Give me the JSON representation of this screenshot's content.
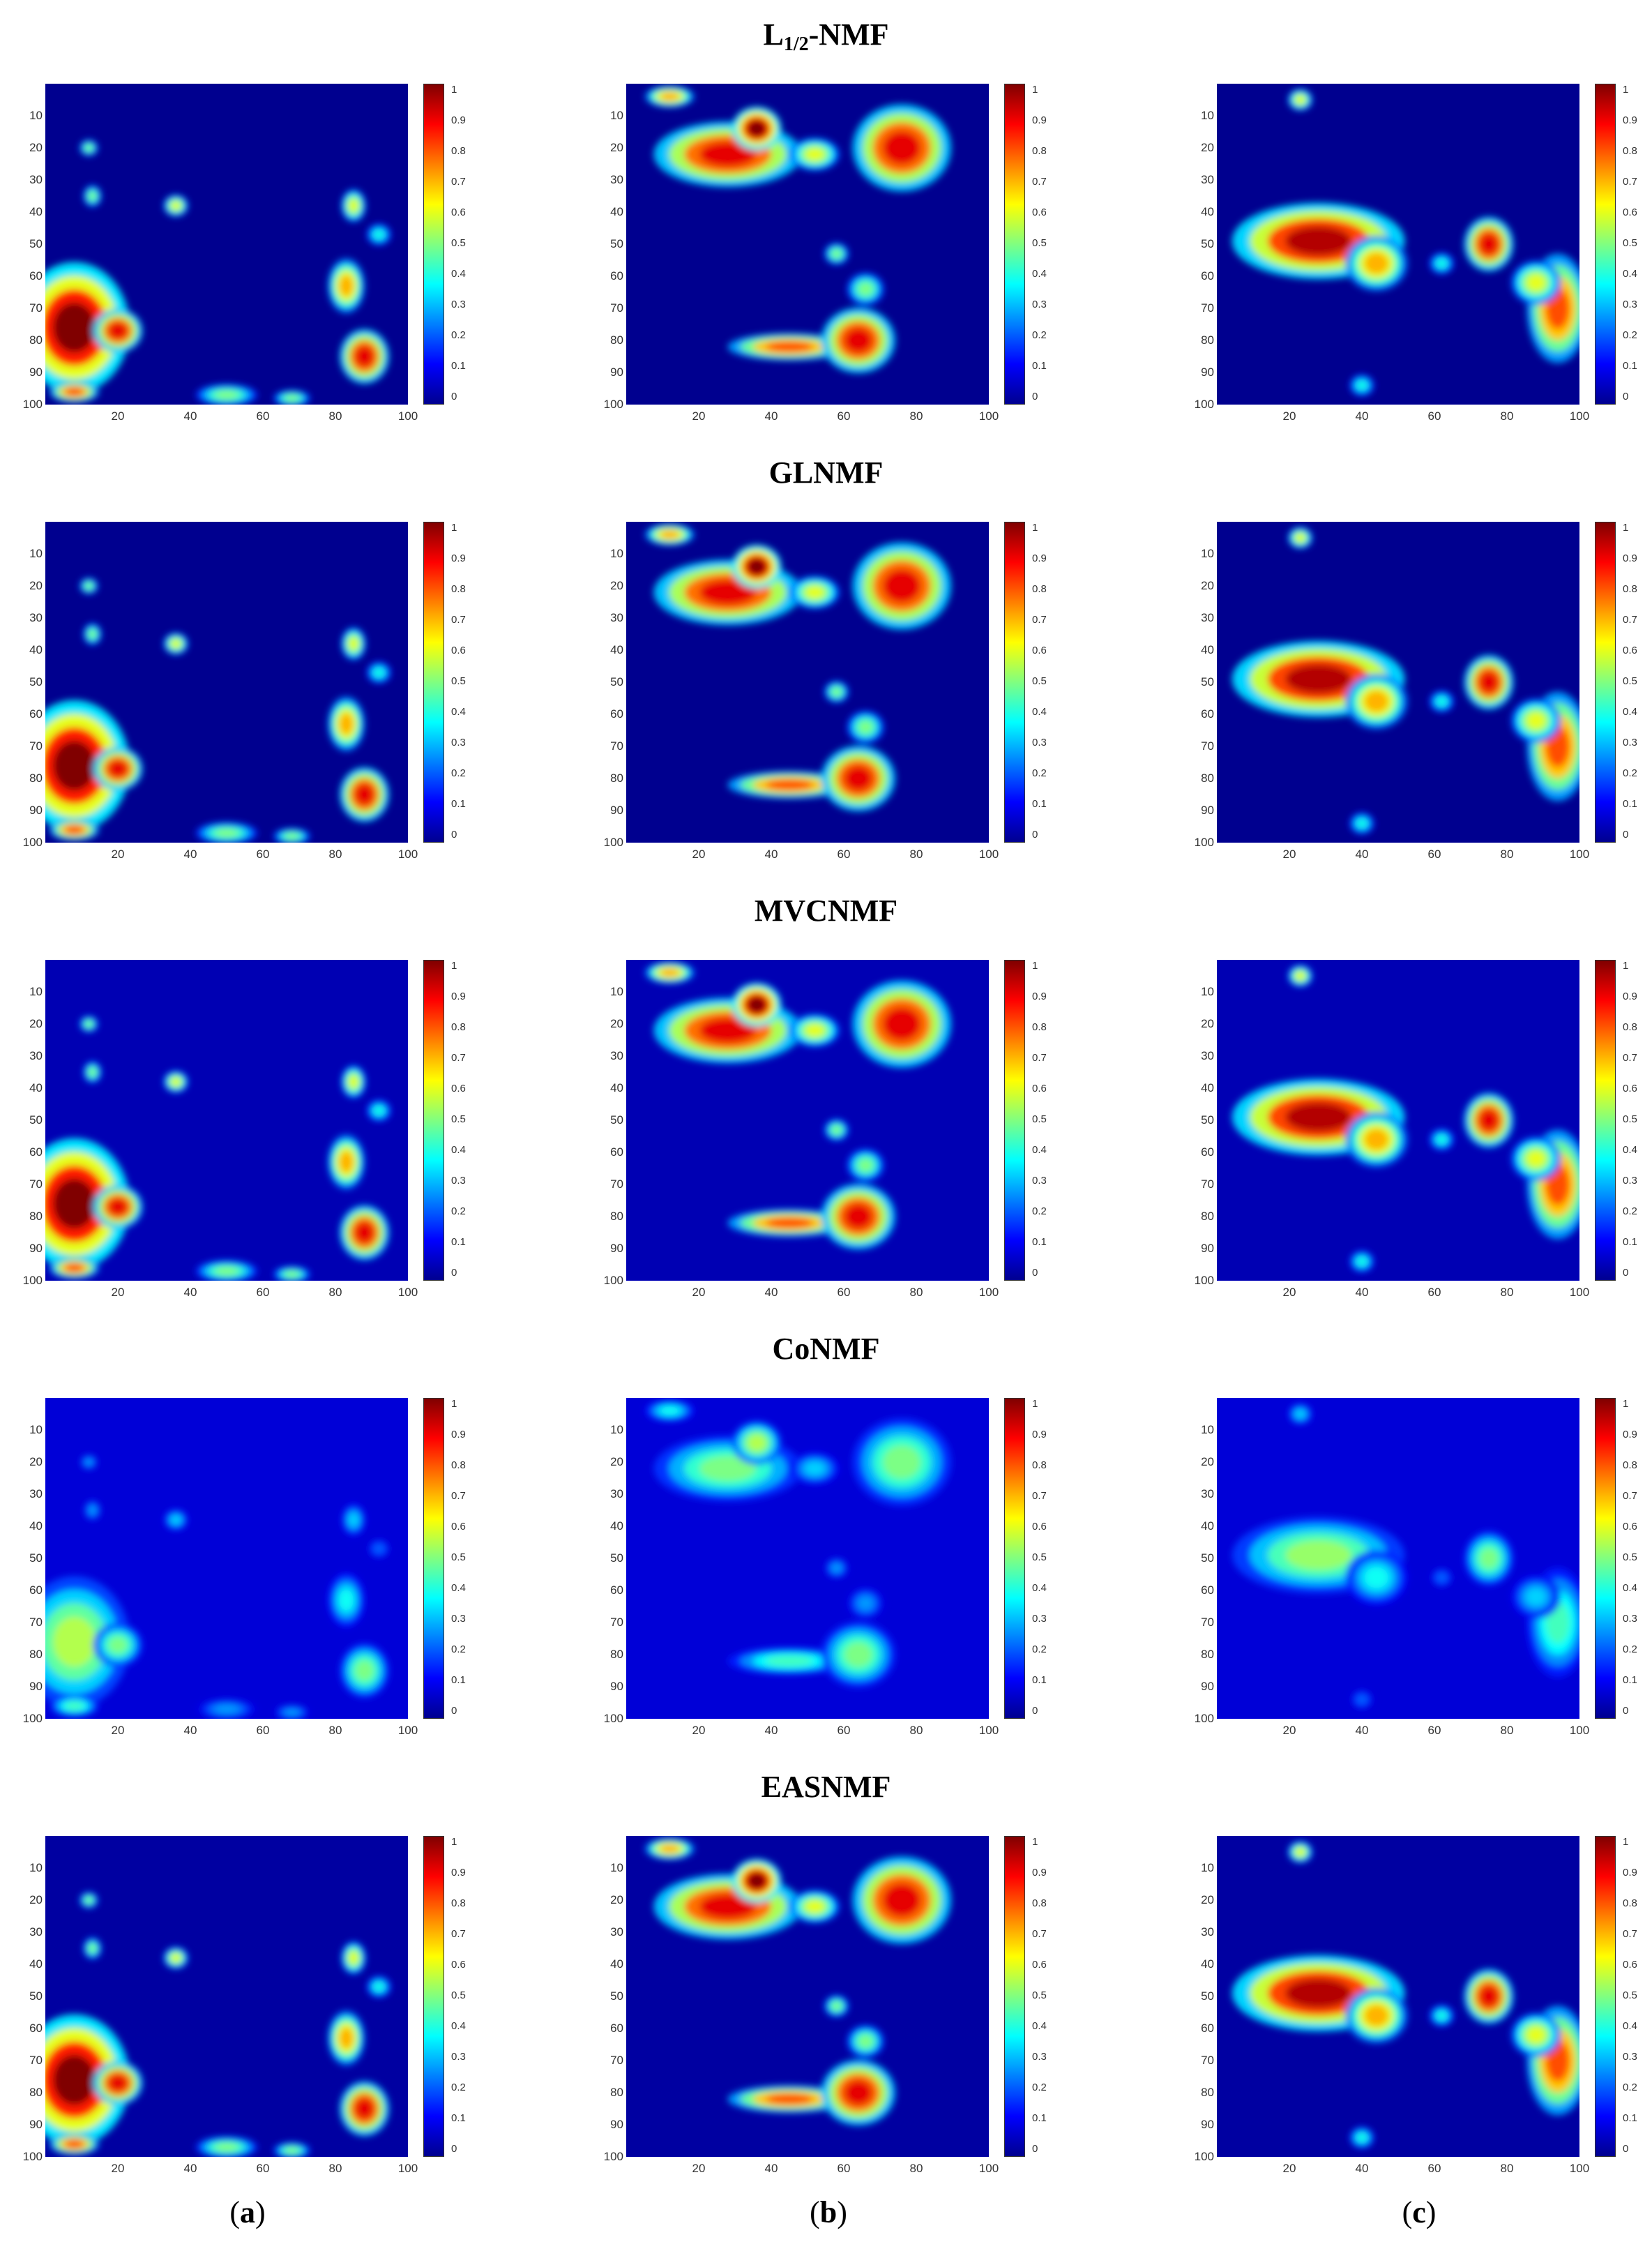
{
  "figure": {
    "rows": [
      {
        "title_main": "L",
        "title_sub": "1/2",
        "title_rest": "-NMF"
      },
      {
        "title_main": "GLNMF",
        "title_sub": "",
        "title_rest": ""
      },
      {
        "title_main": "MVCNMF",
        "title_sub": "",
        "title_rest": ""
      },
      {
        "title_main": "CoNMF",
        "title_sub": "",
        "title_rest": ""
      },
      {
        "title_main": "EASNMF",
        "title_sub": "",
        "title_rest": ""
      }
    ],
    "columns": [
      {
        "open": "(",
        "letter": "a",
        "close": ")"
      },
      {
        "open": "(",
        "letter": "b",
        "close": ")"
      },
      {
        "open": "(",
        "letter": "c",
        "close": ")"
      }
    ],
    "axis_ticks_y": [
      "10",
      "20",
      "30",
      "40",
      "50",
      "60",
      "70",
      "80",
      "90",
      "100"
    ],
    "axis_ticks_x": [
      "20",
      "40",
      "60",
      "80",
      "100"
    ],
    "colorbar_ticks": [
      "1",
      "0.9",
      "0.8",
      "0.7",
      "0.6",
      "0.5",
      "0.4",
      "0.3",
      "0.2",
      "0.1",
      "0"
    ],
    "colormap": [
      "#00008f",
      "#0000ff",
      "#0080ff",
      "#00ffff",
      "#80ff80",
      "#ffff00",
      "#ff8000",
      "#ff0000",
      "#800000"
    ]
  },
  "chart_data": {
    "type": "heatmap",
    "xlim": [
      1,
      100
    ],
    "ylim": [
      1,
      100
    ],
    "clim": [
      0,
      1
    ],
    "y_reversed": true,
    "grid": false,
    "colorbar": "right",
    "panels_per_row": 3,
    "columns_blobs": [
      [
        {
          "x": 8,
          "y": 76,
          "rx": 9,
          "ry": 12,
          "v": 1.0
        },
        {
          "x": 20,
          "y": 77,
          "rx": 4,
          "ry": 4,
          "v": 0.9
        },
        {
          "x": 88,
          "y": 85,
          "rx": 4,
          "ry": 5,
          "v": 0.9
        },
        {
          "x": 83,
          "y": 63,
          "rx": 3,
          "ry": 5,
          "v": 0.7
        },
        {
          "x": 85,
          "y": 38,
          "rx": 2,
          "ry": 3,
          "v": 0.6
        },
        {
          "x": 36,
          "y": 38,
          "rx": 2,
          "ry": 2,
          "v": 0.6
        },
        {
          "x": 12,
          "y": 20,
          "rx": 1.5,
          "ry": 1.5,
          "v": 0.5
        },
        {
          "x": 13,
          "y": 35,
          "rx": 1.5,
          "ry": 2,
          "v": 0.5
        },
        {
          "x": 8,
          "y": 96,
          "rx": 4,
          "ry": 2,
          "v": 0.8
        },
        {
          "x": 50,
          "y": 97,
          "rx": 5,
          "ry": 2,
          "v": 0.5
        },
        {
          "x": 68,
          "y": 98,
          "rx": 3,
          "ry": 1.5,
          "v": 0.5
        },
        {
          "x": 92,
          "y": 47,
          "rx": 2,
          "ry": 2,
          "v": 0.4
        }
      ],
      [
        {
          "x": 28,
          "y": 22,
          "rx": 12,
          "ry": 6,
          "v": 0.9
        },
        {
          "x": 36,
          "y": 14,
          "rx": 4,
          "ry": 4,
          "v": 1.0
        },
        {
          "x": 76,
          "y": 20,
          "rx": 8,
          "ry": 8,
          "v": 0.9
        },
        {
          "x": 52,
          "y": 22,
          "rx": 4,
          "ry": 3,
          "v": 0.6
        },
        {
          "x": 12,
          "y": 4,
          "rx": 4,
          "ry": 2,
          "v": 0.7
        },
        {
          "x": 45,
          "y": 82,
          "rx": 10,
          "ry": 2.5,
          "v": 0.8
        },
        {
          "x": 64,
          "y": 80,
          "rx": 6,
          "ry": 6,
          "v": 0.9
        },
        {
          "x": 66,
          "y": 64,
          "rx": 3,
          "ry": 3,
          "v": 0.5
        },
        {
          "x": 58,
          "y": 53,
          "rx": 2,
          "ry": 2,
          "v": 0.5
        }
      ],
      [
        {
          "x": 28,
          "y": 49,
          "rx": 14,
          "ry": 7,
          "v": 0.95
        },
        {
          "x": 44,
          "y": 56,
          "rx": 5,
          "ry": 5,
          "v": 0.7
        },
        {
          "x": 75,
          "y": 50,
          "rx": 4,
          "ry": 5,
          "v": 0.9
        },
        {
          "x": 94,
          "y": 70,
          "rx": 5,
          "ry": 10,
          "v": 0.8
        },
        {
          "x": 88,
          "y": 62,
          "rx": 4,
          "ry": 4,
          "v": 0.6
        },
        {
          "x": 23,
          "y": 5,
          "rx": 2,
          "ry": 2,
          "v": 0.6
        },
        {
          "x": 62,
          "y": 56,
          "rx": 2,
          "ry": 2,
          "v": 0.4
        },
        {
          "x": 40,
          "y": 94,
          "rx": 2,
          "ry": 2,
          "v": 0.4
        }
      ]
    ],
    "row_intensity": [
      1.0,
      1.0,
      1.0,
      0.55,
      1.0
    ],
    "row_background": [
      0.0,
      0.0,
      0.04,
      0.08,
      0.02
    ]
  }
}
